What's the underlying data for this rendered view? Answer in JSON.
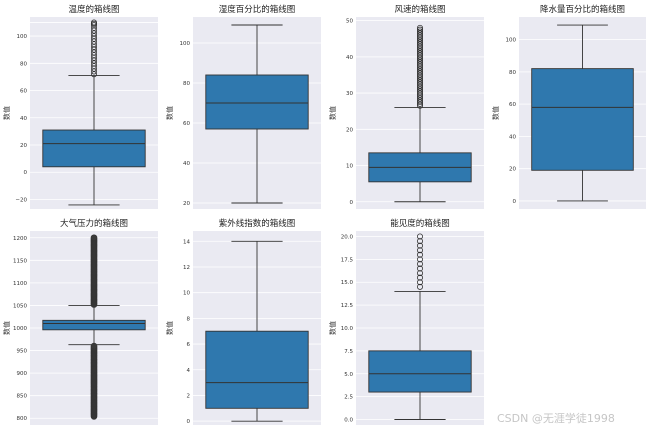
{
  "watermark": "CSDN @无涯学徒1998",
  "chart_data": [
    {
      "type": "box",
      "title": "温度的箱线图",
      "ylabel": "数值",
      "ylim": [
        -27,
        114
      ],
      "yticks": [
        110,
        100,
        80,
        60,
        40,
        20,
        0,
        -20
      ],
      "ytick_labels": [
        "",
        "100",
        "80",
        "60",
        "40",
        "20",
        "0",
        "−20"
      ],
      "box": {
        "whisker_low": -24,
        "q1": 4,
        "median": 21,
        "q3": 31,
        "whisker_high": 71
      },
      "outliers": [
        72,
        74,
        76,
        78,
        80,
        82,
        84,
        86,
        88,
        90,
        92,
        94,
        96,
        98,
        100,
        102,
        104,
        106,
        108,
        109,
        110
      ],
      "outlier_style": "ring"
    },
    {
      "type": "box",
      "title": "湿度百分比的箱线图",
      "ylabel": "数值",
      "ylim": [
        17,
        113
      ],
      "yticks": [
        100,
        80,
        60,
        40,
        20
      ],
      "ytick_labels": [
        "100",
        "80",
        "60",
        "40",
        "20"
      ],
      "box": {
        "whisker_low": 20,
        "q1": 57,
        "median": 70,
        "q3": 84,
        "whisker_high": 109
      },
      "outliers": [],
      "outlier_style": "ring"
    },
    {
      "type": "box",
      "title": "风速的箱线图",
      "ylabel": "数值",
      "ylim": [
        -2,
        51
      ],
      "yticks": [
        50,
        40,
        30,
        20,
        10,
        0
      ],
      "ytick_labels": [
        "50",
        "40",
        "30",
        "20",
        "10",
        "0"
      ],
      "box": {
        "whisker_low": 0,
        "q1": 5.5,
        "median": 9.5,
        "q3": 13.5,
        "whisker_high": 26
      },
      "outliers": [
        26.5,
        27,
        27.5,
        28,
        28.5,
        29,
        29.5,
        30,
        30.5,
        31,
        31.5,
        32,
        32.5,
        33,
        33.5,
        34,
        34.5,
        35,
        35.5,
        36,
        36.5,
        37,
        37.5,
        38,
        38.5,
        39,
        39.5,
        40,
        40.5,
        41,
        41.5,
        42,
        42.5,
        43,
        43.5,
        44,
        44.5,
        45,
        45.5,
        46,
        46.5,
        47,
        47.5,
        48
      ],
      "outlier_style": "ring"
    },
    {
      "type": "box",
      "title": "降水量百分比的箱线图",
      "ylabel": "数值",
      "ylim": [
        -5,
        114
      ],
      "yticks": [
        100,
        80,
        60,
        40,
        20,
        0
      ],
      "ytick_labels": [
        "100",
        "80",
        "60",
        "40",
        "20",
        "0"
      ],
      "box": {
        "whisker_low": 0,
        "q1": 19,
        "median": 58,
        "q3": 82,
        "whisker_high": 109
      },
      "outliers": [],
      "outlier_style": "ring"
    },
    {
      "type": "box",
      "title": "大气压力的箱线图",
      "ylabel": "数值",
      "ylim": [
        785,
        1215
      ],
      "yticks": [
        1200,
        1150,
        1100,
        1050,
        1000,
        950,
        900,
        850,
        800
      ],
      "ytick_labels": [
        "1200",
        "1150",
        "1100",
        "1050",
        "1000",
        "950",
        "900",
        "850",
        "800"
      ],
      "box": {
        "whisker_low": 963,
        "q1": 996,
        "median": 1010,
        "q3": 1017,
        "whisker_high": 1050
      },
      "outlier_ranges": [
        [
          1052,
          1200
        ],
        [
          804,
          960
        ]
      ],
      "outlier_style": "solid"
    },
    {
      "type": "box",
      "title": "紫外线指数的箱线图",
      "ylabel": "数值",
      "ylim": [
        -0.3,
        14.8
      ],
      "yticks": [
        14,
        12,
        10,
        8,
        6,
        4,
        2,
        0
      ],
      "ytick_labels": [
        "14",
        "12",
        "10",
        "8",
        "6",
        "4",
        "2",
        "0"
      ],
      "box": {
        "whisker_low": 0,
        "q1": 1,
        "median": 3,
        "q3": 7,
        "whisker_high": 14
      },
      "outliers": [],
      "outlier_style": "ring"
    },
    {
      "type": "box",
      "title": "能见度的箱线图",
      "ylabel": "数值",
      "ylim": [
        -0.6,
        20.6
      ],
      "yticks": [
        20,
        17.5,
        15,
        12.5,
        10,
        7.5,
        5,
        2.5,
        0
      ],
      "ytick_labels": [
        "20.0",
        "17.5",
        "15.0",
        "12.5",
        "10.0",
        "7.5",
        "5.0",
        "2.5",
        "0.0"
      ],
      "box": {
        "whisker_low": 0,
        "q1": 3,
        "median": 5,
        "q3": 7.5,
        "whisker_high": 14
      },
      "outliers": [
        14.5,
        15,
        15.5,
        16,
        16.5,
        17,
        17.5,
        18,
        18.5,
        19,
        19.5,
        20
      ],
      "outlier_style": "ring"
    }
  ],
  "colors": {
    "box_fill": "#2f78ae",
    "line": "#333333",
    "outlier_fill": "#3a3a3a",
    "panel_bg": "#eaeaf2",
    "grid": "#ffffff"
  }
}
